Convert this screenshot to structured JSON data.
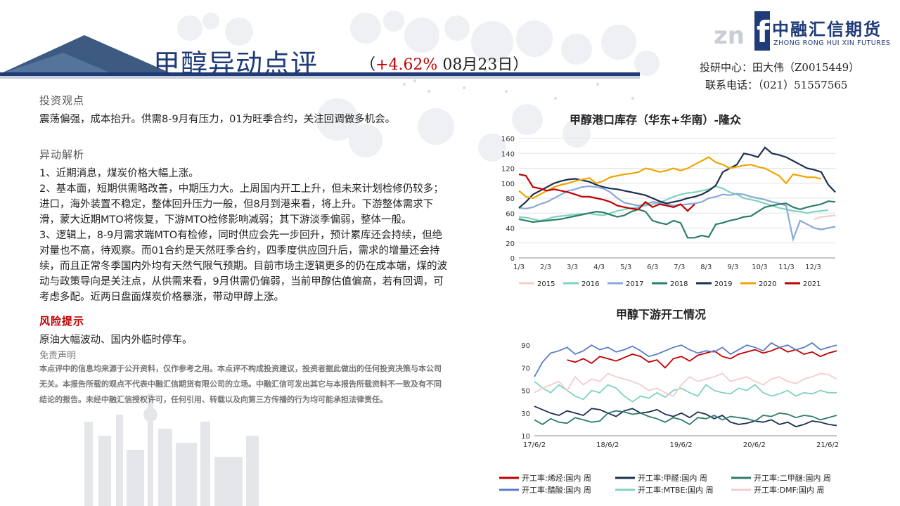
{
  "header": {
    "title": "甲醇异动点评",
    "subtitle_open": "（",
    "subtitle_pct": "+4.62%",
    "subtitle_rest": " 08月23日）"
  },
  "logo": {
    "cn": "中融汇信期货",
    "en": "ZHONG RONG HUI XIN FUTURES",
    "mark": "f"
  },
  "contact": {
    "line1": "投研中心：田大伟（Z0015449）",
    "line2": "联系电话：（021）51557565"
  },
  "sections": {
    "view_title": "投资观点",
    "view_text": "震荡偏强，成本抬升。供需8-9月有压力，01为旺季合约，关注回调做多机会。",
    "analysis_title": "异动解析",
    "analysis_paras": [
      "1、近期消息，煤炭价格大幅上涨。",
      "2、基本面，短期供需略改善，中期压力大。上周国内开工上升，但未来计划检修仍较多；进口，海外装置不稳定，整体回升压力一般，但8月到港来看，将上升。下游整体需求下滑，蒙大近期MTO将恢复，下游MTO检修影响减弱；其下游淡季偏弱，整体一般。",
      "3、逻辑上，8-9月需求端MTO有检修，同时供应会先一步回升，预计累库还会持续，但绝对量也不高，待观察。而01合约是天然旺季合约，四季度供应回升后，需求的增量还会持续，而且正常冬季国内外均有天然气限气预期。目前市场主逻辑更多的仍在成本端，煤的波动与政策导向是关注点，从供需来看，9月供需仍偏弱，当前甲醇估值偏高，若有回调，可考虑多配。近两日盘面煤炭价格暴涨，带动甲醇上涨。"
    ],
    "risk_title": "风险提示",
    "risk_text": "原油大幅波动、国内外临时停车。",
    "disclaimer_title": "免责声明",
    "disclaimer_text": "本点评中的信息均来源于公开资料，仅作参考之用。本点评不构成投资建议，投资者据此做出的任何投资决策与本公司无关。本报告所载的观点不代表中融汇信期货有限公司的立场。中融汇信可发出其它与本报告所载资料不一致及有不同结论的报告。未经中融汇信授权许可，任何引用、转载以及向第三方传播的行为均可能承担法律责任。"
  },
  "chart_data": [
    {
      "type": "line",
      "title": "甲醇港口库存（华东+华南）-隆众",
      "xlabel": "",
      "ylabel": "",
      "ylim": [
        0,
        160
      ],
      "yticks": [
        0,
        20,
        40,
        60,
        80,
        100,
        120,
        140,
        160
      ],
      "xticks": [
        "1/3",
        "2/3",
        "3/3",
        "4/3",
        "5/3",
        "6/3",
        "7/3",
        "8/3",
        "9/3",
        "10/3",
        "11/3",
        "12/3"
      ],
      "grid": true,
      "legend_position": "bottom",
      "series": [
        {
          "name": "2015",
          "color": "#f4cccc",
          "values": [
            null,
            null,
            null,
            null,
            null,
            null,
            null,
            null,
            null,
            null,
            null,
            null,
            null,
            null,
            null,
            null,
            null,
            null,
            null,
            null,
            null,
            null,
            null,
            null,
            null,
            null,
            null,
            null,
            null,
            null,
            null,
            null,
            null,
            null,
            null,
            null,
            null,
            null,
            null,
            null,
            null,
            null,
            52,
            55,
            56,
            57
          ]
        },
        {
          "name": "2016",
          "color": "#7fd3c0",
          "values": [
            55,
            54,
            52,
            50,
            52,
            55,
            56,
            57,
            58,
            59,
            60,
            58,
            57,
            60,
            63,
            65,
            67,
            68,
            70,
            72,
            74,
            78,
            82,
            85,
            87,
            88,
            90,
            92,
            96,
            93,
            88,
            85,
            80,
            78,
            76,
            73,
            70,
            67,
            65,
            63,
            62,
            60,
            62,
            63,
            64,
            null
          ]
        },
        {
          "name": "2017",
          "color": "#8aa9d6",
          "values": [
            67,
            66,
            68,
            72,
            75,
            80,
            85,
            90,
            92,
            95,
            96,
            95,
            93,
            88,
            80,
            74,
            72,
            70,
            72,
            75,
            74,
            72,
            70,
            71,
            72,
            73,
            75,
            80,
            82,
            85,
            84,
            86,
            85,
            82,
            80,
            78,
            75,
            73,
            70,
            25,
            50,
            45,
            40,
            38,
            40,
            42
          ]
        },
        {
          "name": "2018",
          "color": "#2e7d6b",
          "values": [
            52,
            50,
            48,
            49,
            50,
            51,
            52,
            54,
            56,
            58,
            60,
            62,
            61,
            58,
            55,
            57,
            62,
            65,
            62,
            50,
            47,
            45,
            50,
            47,
            27,
            27,
            30,
            28,
            45,
            47,
            50,
            52,
            55,
            56,
            62,
            68,
            70,
            72,
            73,
            68,
            65,
            68,
            70,
            72,
            76,
            75
          ]
        },
        {
          "name": "2019",
          "color": "#1e2f4f",
          "values": [
            67,
            75,
            85,
            90,
            95,
            100,
            103,
            105,
            106,
            104,
            102,
            98,
            95,
            93,
            92,
            90,
            88,
            86,
            84,
            80,
            76,
            73,
            75,
            77,
            80,
            82,
            85,
            90,
            97,
            115,
            120,
            125,
            140,
            138,
            135,
            148,
            140,
            138,
            135,
            130,
            125,
            120,
            118,
            115,
            98,
            88
          ]
        },
        {
          "name": "2020",
          "color": "#f0a500",
          "values": [
            90,
            82,
            80,
            85,
            90,
            95,
            98,
            100,
            103,
            105,
            107,
            100,
            103,
            108,
            110,
            112,
            113,
            115,
            120,
            118,
            115,
            117,
            120,
            117,
            120,
            125,
            130,
            135,
            128,
            125,
            120,
            122,
            124,
            125,
            122,
            120,
            115,
            110,
            100,
            112,
            110,
            108,
            108,
            106,
            null,
            null
          ]
        },
        {
          "name": "2021",
          "color": "#c00000",
          "values": [
            112,
            110,
            95,
            93,
            90,
            92,
            90,
            88,
            85,
            82,
            82,
            80,
            78,
            75,
            70,
            68,
            66,
            65,
            75,
            68,
            72,
            70,
            68,
            72,
            63,
            72,
            null,
            null,
            null,
            null,
            null,
            null,
            null,
            null,
            null,
            null,
            null,
            null,
            null,
            null,
            null,
            null,
            null,
            null,
            null,
            null
          ]
        }
      ]
    },
    {
      "type": "line",
      "title": "甲醇下游开工情况",
      "xlabel": "",
      "ylabel": "",
      "ylim": [
        10,
        100
      ],
      "yticks": [
        10,
        30,
        50,
        70,
        90
      ],
      "xticks": [
        "17/6/2",
        "18/6/2",
        "19/6/2",
        "20/6/2",
        "21/6/2"
      ],
      "grid": false,
      "legend_position": "bottom",
      "series": [
        {
          "name": "开工率:烯烃:国内 周",
          "color": "#c00000",
          "values": [
            null,
            null,
            null,
            null,
            77,
            75,
            78,
            74,
            80,
            78,
            76,
            79,
            82,
            80,
            75,
            77,
            70,
            78,
            80,
            76,
            81,
            83,
            85,
            80,
            78,
            82,
            84,
            86,
            83,
            85,
            88,
            84,
            86,
            82,
            84,
            80,
            83,
            85
          ]
        },
        {
          "name": "开工率:甲醛:国内 周",
          "color": "#1e2f4f",
          "values": [
            36,
            33,
            30,
            28,
            32,
            30,
            28,
            34,
            33,
            30,
            27,
            32,
            34,
            30,
            31,
            33,
            29,
            27,
            30,
            26,
            31,
            29,
            25,
            28,
            22,
            20,
            21,
            23,
            22,
            24,
            20,
            22,
            18,
            20,
            23,
            22,
            20,
            19
          ]
        },
        {
          "name": "开工率:二甲醚:国内 周",
          "color": "#2e7d6b",
          "values": [
            24,
            20,
            25,
            22,
            21,
            26,
            24,
            22,
            23,
            30,
            32,
            31,
            29,
            30,
            27,
            25,
            22,
            26,
            24,
            20,
            26,
            25,
            28,
            24,
            27,
            26,
            25,
            23,
            28,
            27,
            30,
            29,
            26,
            28,
            27,
            24,
            26,
            28
          ]
        },
        {
          "name": "开工率:醋酸:国内 周",
          "color": "#5b7dc8",
          "values": [
            62,
            75,
            83,
            85,
            88,
            82,
            85,
            90,
            86,
            88,
            84,
            86,
            89,
            85,
            80,
            82,
            85,
            88,
            90,
            86,
            83,
            85,
            84,
            88,
            82,
            86,
            90,
            88,
            85,
            92,
            88,
            90,
            86,
            88,
            92,
            86,
            88,
            90
          ]
        },
        {
          "name": "开工率:MTBE:国内 周",
          "color": "#7fd3c0",
          "values": [
            58,
            52,
            48,
            55,
            50,
            45,
            42,
            50,
            48,
            55,
            52,
            45,
            40,
            45,
            43,
            48,
            44,
            50,
            52,
            48,
            45,
            55,
            50,
            48,
            47,
            52,
            50,
            55,
            48,
            45,
            47,
            50,
            45,
            48,
            47,
            50,
            48,
            48
          ]
        },
        {
          "name": "开工率:DMF:国内 周",
          "color": "#f4cccc",
          "values": [
            48,
            52,
            55,
            58,
            50,
            62,
            55,
            60,
            58,
            65,
            62,
            60,
            58,
            55,
            50,
            52,
            48,
            45,
            55,
            62,
            58,
            60,
            62,
            65,
            58,
            60,
            62,
            58,
            55,
            60,
            62,
            58,
            56,
            60,
            62,
            65,
            64,
            60
          ]
        }
      ]
    }
  ]
}
